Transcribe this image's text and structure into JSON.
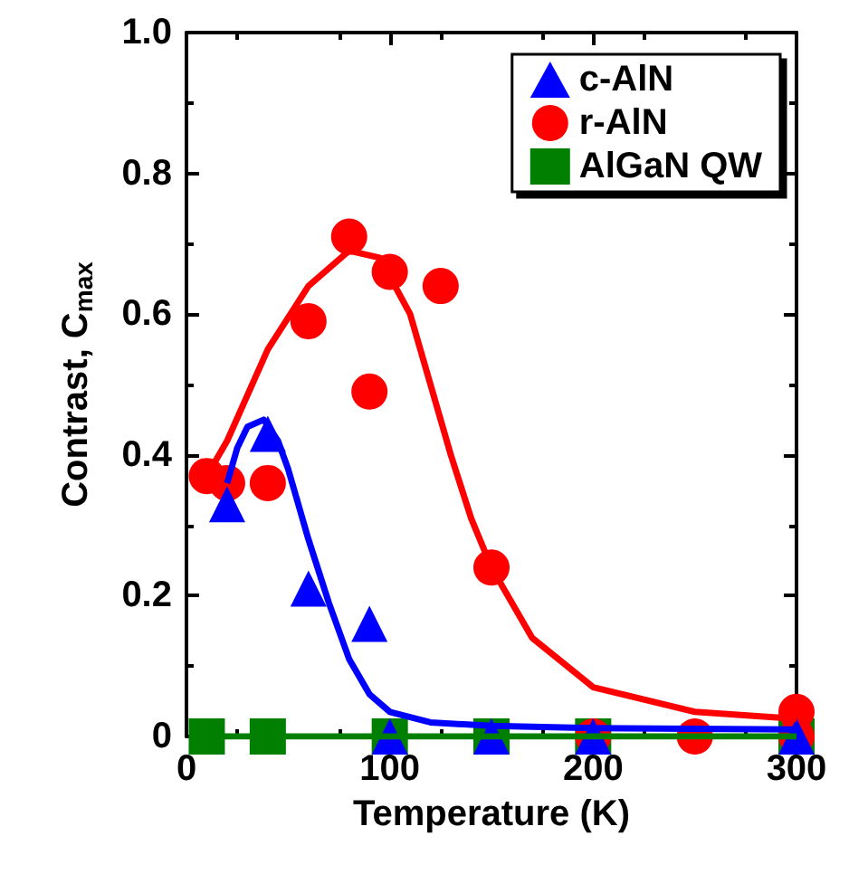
{
  "chart_data": {
    "type": "scatter",
    "xlabel": "Temperature (K)",
    "ylabel": "Contrast, C$_{max}$",
    "xlim": [
      0,
      300
    ],
    "xticks": [
      0,
      100,
      200,
      300
    ],
    "ylim": [
      0,
      1
    ],
    "yticks": [
      0,
      0.2,
      0.4,
      0.6,
      0.8,
      {
        "value": 1,
        "label": "1.0"
      }
    ],
    "grid": false,
    "legend": "top right",
    "series": [
      {
        "name": "c-AlN",
        "marker": "triangle",
        "color": "#0000ff",
        "x": [
          20,
          40,
          60,
          90,
          100,
          150,
          200,
          300
        ],
        "values": [
          0.33,
          0.43,
          0.21,
          0.16,
          0,
          0,
          0,
          0
        ]
      },
      {
        "name": "r-AlN",
        "marker": "circle",
        "color": "#ff0000",
        "x": [
          10,
          20,
          40,
          60,
          80,
          90,
          100,
          125,
          150,
          200,
          250,
          300,
          300
        ],
        "values": [
          0.37,
          0.36,
          0.36,
          0.59,
          0.71,
          0.49,
          0.66,
          0.64,
          0.24,
          0,
          0,
          0,
          0.035
        ]
      },
      {
        "name": "AlGaN QW",
        "marker": "square",
        "color": "#007f00",
        "x": [
          10,
          40,
          100,
          150,
          200,
          300
        ],
        "values": [
          0,
          0,
          0,
          0,
          0,
          0
        ]
      },
      {
        "type": "line",
        "marker": "none",
        "color": "#0000ff",
        "x": [
          20,
          25,
          30,
          38,
          45,
          50,
          60,
          70,
          80,
          90,
          100,
          120,
          150,
          200,
          300
        ],
        "values": [
          0.36,
          0.41,
          0.44,
          0.45,
          0.42,
          0.38,
          0.28,
          0.19,
          0.11,
          0.06,
          0.035,
          0.02,
          0.015,
          0.012,
          0.01
        ]
      },
      {
        "type": "line",
        "marker": "none",
        "color": "#ff0000",
        "x": [
          10,
          20,
          40,
          60,
          80,
          95,
          110,
          120,
          130,
          140,
          150,
          170,
          200,
          250,
          300
        ],
        "values": [
          0.37,
          0.42,
          0.55,
          0.64,
          0.69,
          0.68,
          0.6,
          0.5,
          0.4,
          0.31,
          0.24,
          0.14,
          0.07,
          0.035,
          0.025
        ]
      },
      {
        "type": "line",
        "marker": "none",
        "color": "#007f00",
        "x": [
          10,
          300
        ],
        "values": [
          0,
          0
        ]
      }
    ]
  }
}
